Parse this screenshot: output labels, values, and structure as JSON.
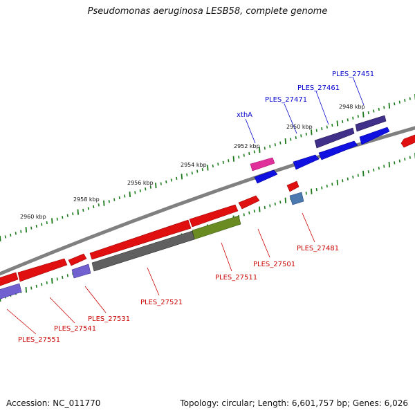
{
  "title": "Pseudomonas aeruginosa LESB58, complete genome",
  "footer": {
    "accession": "Accession: NC_011770",
    "summary": "Topology: circular; Length: 6,601,757 bp; Genes: 6,026"
  },
  "colors": {
    "backbone": "#808080",
    "ruler": "#1a7a1a",
    "forward_gene": "#1010e0",
    "reverse_gene": "#e01010",
    "pseudo_violet": "#7060d0",
    "gray_gene": "#606060",
    "olive_gene": "#6a8a22",
    "magenta_gene": "#e0309a",
    "steel_gene": "#4a7ab0",
    "label_top": "#0000cc",
    "label_bottom": "#cc0000"
  },
  "ticks": [
    "2948 kbp",
    "2950 kbp",
    "2952 kbp",
    "2954 kbp",
    "2956 kbp",
    "2958 kbp",
    "2960 kbp"
  ],
  "labels_top": [
    "PLES_27451",
    "PLES_27461",
    "PLES_27471",
    "xthA"
  ],
  "labels_bottom": [
    "PLES_27481",
    "PLES_27501",
    "PLES_27511",
    "PLES_27521",
    "PLES_27531",
    "PLES_27541",
    "PLES_27551"
  ]
}
